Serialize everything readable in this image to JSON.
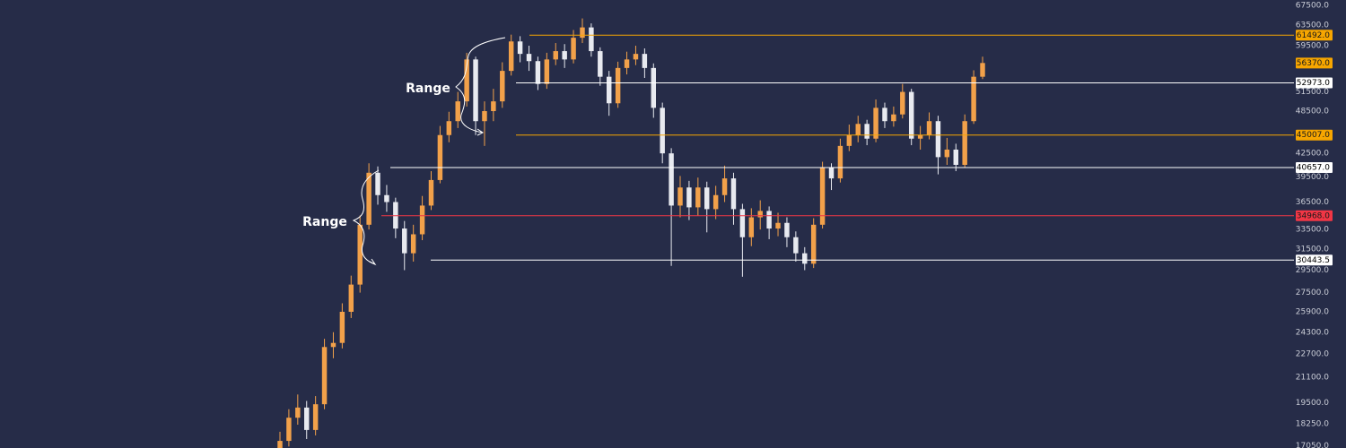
{
  "chart_data": {
    "type": "candlestick",
    "log_scale": true,
    "up_color": "#f2a14a",
    "down_color": "#e8eaf0",
    "ylim": [
      16920,
      68640
    ],
    "yticks": [
      {
        "value": 67500,
        "label": "67500.0"
      },
      {
        "value": 63500,
        "label": "63500.0"
      },
      {
        "value": 59500,
        "label": "59500.0"
      },
      {
        "value": 51500,
        "label": "51500.0"
      },
      {
        "value": 48500,
        "label": "48500.0"
      },
      {
        "value": 42500,
        "label": "42500.0"
      },
      {
        "value": 39500,
        "label": "39500.0"
      },
      {
        "value": 36500,
        "label": "36500.0"
      },
      {
        "value": 33500,
        "label": "33500.0"
      },
      {
        "value": 31500,
        "label": "31500.0"
      },
      {
        "value": 29500,
        "label": "29500.0"
      },
      {
        "value": 27500,
        "label": "27500.0"
      },
      {
        "value": 25900,
        "label": "25900.0"
      },
      {
        "value": 24300,
        "label": "24300.0"
      },
      {
        "value": 22700,
        "label": "22700.0"
      },
      {
        "value": 21100,
        "label": "21100.0"
      },
      {
        "value": 19500,
        "label": "19500.0"
      },
      {
        "value": 18250,
        "label": "18250.0"
      },
      {
        "value": 17050,
        "label": "17050.0"
      }
    ],
    "open": [
      16900,
      17300,
      18600,
      19200,
      17900,
      19400,
      23200,
      23500,
      25900,
      28200,
      34000,
      40000,
      37300,
      36500,
      33600,
      31100,
      33000,
      36100,
      39100,
      45000,
      47000,
      50000,
      57000,
      47000,
      48500,
      50000,
      55000,
      60300,
      58000,
      56700,
      52800,
      57000,
      58500,
      57000,
      61000,
      63000,
      58500,
      54000,
      49700,
      55500,
      57000,
      58000,
      55500,
      49000,
      42500,
      36100,
      38200,
      35900,
      38200,
      35700,
      37300,
      39300,
      35700,
      32700,
      34800,
      35500,
      33600,
      34200,
      32700,
      31100,
      30100,
      34000,
      40600,
      39300,
      43500,
      45000,
      46600,
      44500,
      49000,
      47000,
      48000,
      51500,
      44500,
      45000,
      47000,
      42000,
      43000,
      41000,
      47000,
      54000
    ],
    "high": [
      17800,
      19100,
      20000,
      19600,
      19900,
      23800,
      24300,
      26600,
      29000,
      35000,
      41200,
      40800,
      38500,
      37000,
      34400,
      34000,
      37200,
      40200,
      46300,
      48400,
      51500,
      58200,
      57500,
      50000,
      52000,
      56500,
      61600,
      61300,
      59500,
      57500,
      58200,
      60000,
      59800,
      62500,
      64800,
      63800,
      59200,
      55000,
      56600,
      58400,
      59500,
      59000,
      56300,
      49800,
      43200,
      39600,
      39000,
      39400,
      38900,
      38400,
      40900,
      40000,
      36300,
      35800,
      36700,
      36000,
      35300,
      34800,
      33300,
      31700,
      34700,
      41400,
      41200,
      44500,
      46500,
      47800,
      47200,
      50300,
      49800,
      49200,
      52800,
      52000,
      46300,
      48300,
      47800,
      44600,
      43800,
      48000,
      55100,
      57500
    ],
    "low": [
      16700,
      17000,
      18200,
      17400,
      17600,
      19100,
      22400,
      23100,
      25400,
      27500,
      33500,
      36200,
      35400,
      32600,
      29500,
      30300,
      32400,
      35600,
      38700,
      44000,
      46000,
      49200,
      45000,
      43500,
      47000,
      49000,
      54200,
      56500,
      55000,
      51800,
      52000,
      56000,
      55500,
      56300,
      60000,
      57500,
      52500,
      47800,
      49000,
      54400,
      56000,
      53800,
      47500,
      41200,
      29900,
      34800,
      34500,
      35000,
      33200,
      34600,
      36500,
      34000,
      28900,
      31800,
      33500,
      32500,
      32800,
      31700,
      30300,
      29500,
      29700,
      33600,
      37900,
      38800,
      42800,
      44000,
      43600,
      44000,
      46000,
      46200,
      47400,
      43600,
      43000,
      44400,
      39800,
      41000,
      40200,
      40600,
      46600,
      53600
    ],
    "close": [
      17300,
      18600,
      19200,
      17900,
      19400,
      23200,
      23500,
      25900,
      28200,
      34000,
      40000,
      37300,
      36500,
      33600,
      31100,
      33000,
      36100,
      39100,
      45000,
      47000,
      50000,
      57000,
      47000,
      48500,
      50000,
      55000,
      60300,
      58000,
      56700,
      52800,
      57000,
      58500,
      57000,
      61000,
      63000,
      58500,
      54000,
      49700,
      55500,
      57000,
      58000,
      55500,
      49000,
      42500,
      36100,
      38200,
      35900,
      38200,
      35700,
      37300,
      39300,
      35700,
      32700,
      34800,
      35500,
      33600,
      34200,
      32700,
      31100,
      30100,
      34000,
      40600,
      39300,
      43500,
      45000,
      46600,
      44500,
      49000,
      47000,
      48000,
      51500,
      44500,
      45000,
      47000,
      42000,
      43000,
      41000,
      47000,
      54000,
      56370
    ],
    "levels": [
      {
        "value": 61492,
        "label": "61492.0",
        "color": "#f7a600"
      },
      {
        "value": 52973,
        "label": "52973.0",
        "color": "#ffffff"
      },
      {
        "value": 45007,
        "label": "45007.0",
        "color": "#f7a600"
      },
      {
        "value": 40657,
        "label": "40657.0",
        "color": "#ffffff"
      },
      {
        "value": 34968,
        "label": "34968.0",
        "color": "#f23645"
      },
      {
        "value": 30443.5,
        "label": "30443.5",
        "color": "#ffffff"
      }
    ],
    "last_price": {
      "value": 56370,
      "label": "56370.0",
      "color": "#f7a600"
    },
    "annotations": [
      "Range",
      "Range"
    ]
  }
}
